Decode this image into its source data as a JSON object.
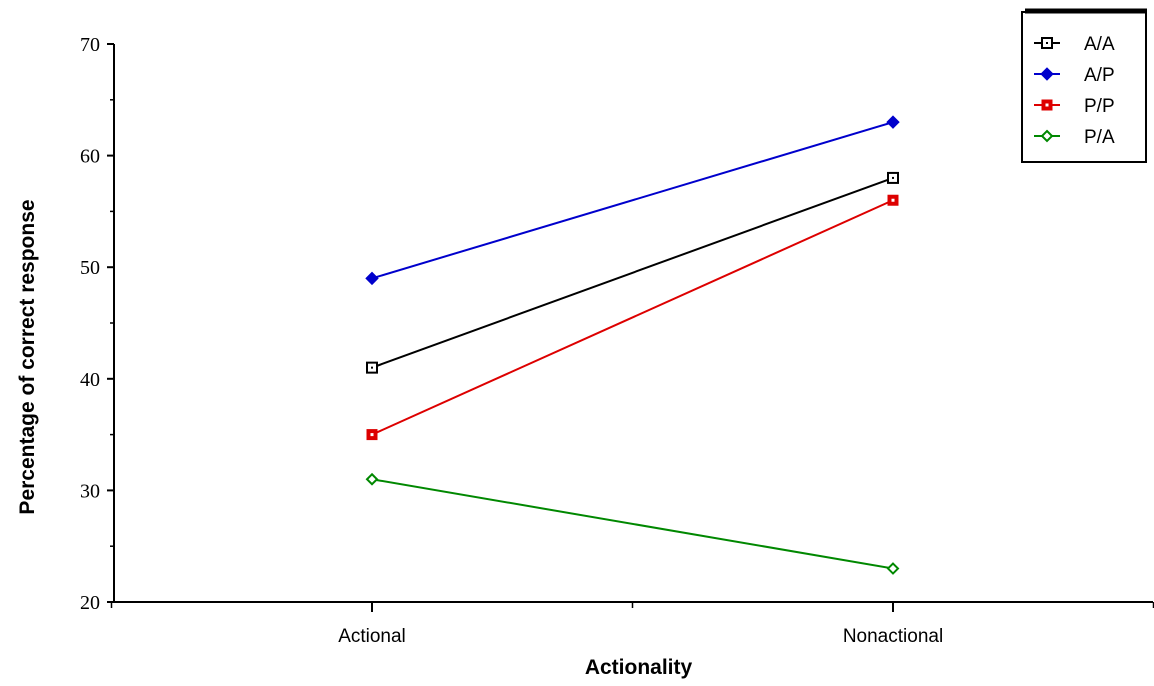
{
  "chart_data": {
    "type": "line",
    "categories": [
      "Actional",
      "Nonactional"
    ],
    "xlabel": "Actionality",
    "ylabel": "Percentage of correct response",
    "ylim": [
      20,
      70
    ],
    "yticks": [
      20,
      30,
      40,
      50,
      60,
      70
    ],
    "grid": false,
    "legend_position": "top-right",
    "series": [
      {
        "name": "A/A",
        "values": [
          41,
          58
        ],
        "color": "#000000",
        "marker": "open-square"
      },
      {
        "name": "A/P",
        "values": [
          49,
          63
        ],
        "color": "#0000cc",
        "marker": "filled-diamond"
      },
      {
        "name": "P/P",
        "values": [
          35,
          56
        ],
        "color": "#dd0000",
        "marker": "filled-square"
      },
      {
        "name": "P/A",
        "values": [
          31,
          23
        ],
        "color": "#008800",
        "marker": "open-diamond"
      }
    ]
  }
}
